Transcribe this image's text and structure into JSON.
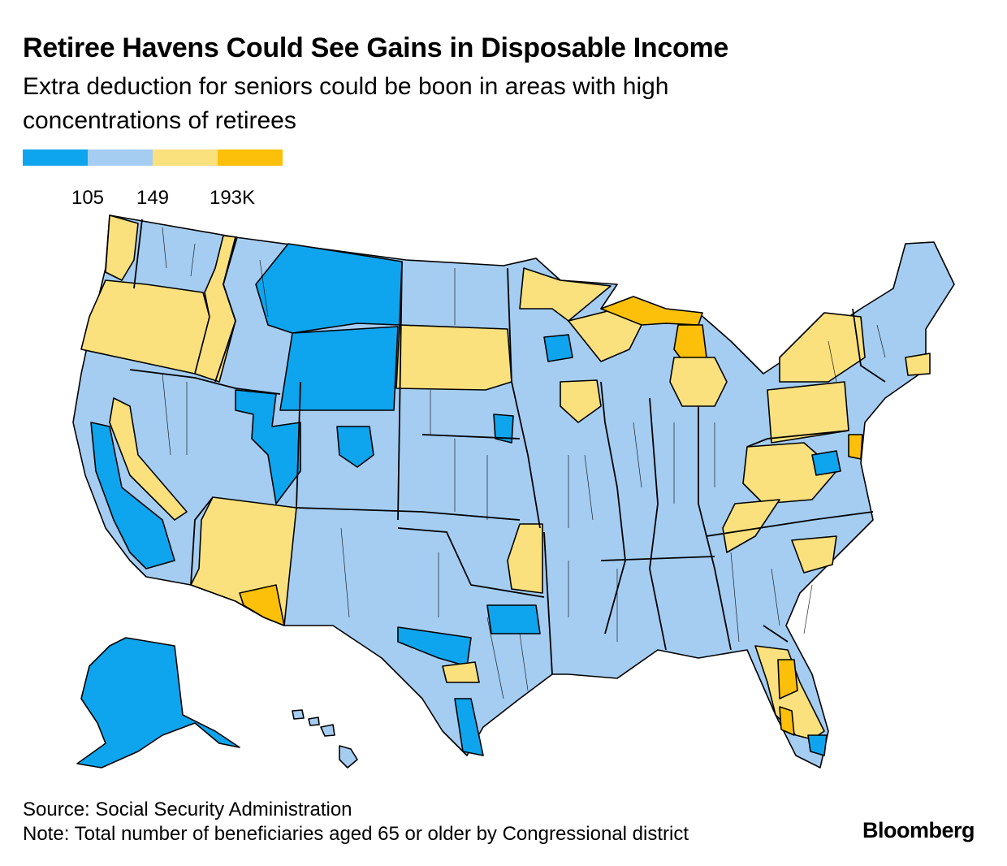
{
  "title": "Retiree Havens Could See Gains in Disposable Income",
  "subtitle": "Extra deduction for seniors could be boon in areas with high concentrations of retirees",
  "legend": {
    "colors": [
      "#0ea5ee",
      "#a5cdf2",
      "#fbe17d",
      "#fcbf0a"
    ],
    "ticks": [
      "105",
      "149",
      "193K"
    ]
  },
  "colors": {
    "very_low": "#0ea5ee",
    "low": "#a5cdf2",
    "high": "#fbe17d",
    "very_high": "#fcbf0a",
    "border": "#000000"
  },
  "footer": {
    "source": "Source: Social Security Administration",
    "note": "Note: Total number of beneficiaries aged 65 or older by Congressional district"
  },
  "logo": "Bloomberg"
}
